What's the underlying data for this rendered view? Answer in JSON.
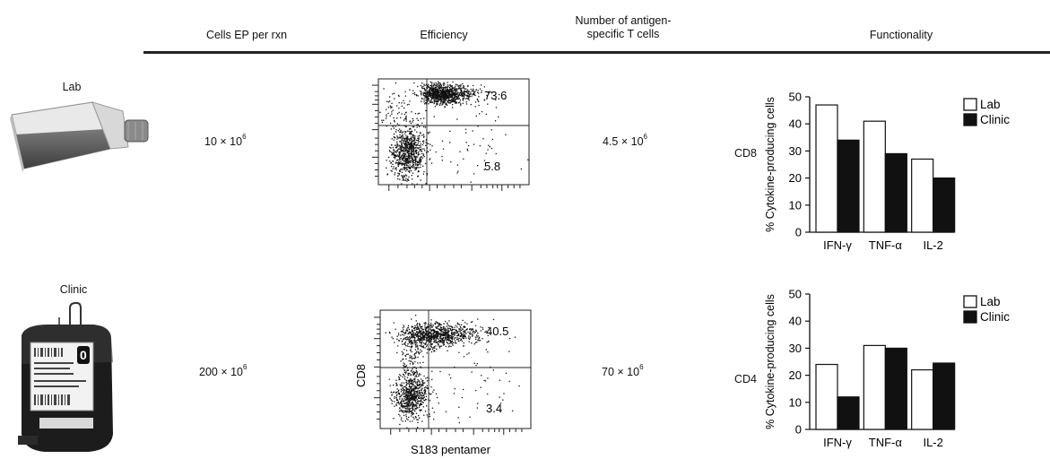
{
  "headers": {
    "cells_ep": "Cells EP per rxn",
    "efficiency": "Efficiency",
    "antigen_line1": "Number of antigen-",
    "antigen_line2": "specific T cells",
    "functionality": "Functionality"
  },
  "rows": [
    {
      "label": "Lab",
      "cells_ep_base": "10 × 10",
      "cells_ep_exp": "6",
      "flow_upper": "73.6",
      "flow_lower": "5.8",
      "antigen_base": "4.5 × 10",
      "antigen_exp": "6",
      "cell_type": "CD8"
    },
    {
      "label": "Clinic",
      "cells_ep_base": "200 × 10",
      "cells_ep_exp": "6",
      "flow_upper": "40.5",
      "flow_lower": "3.4",
      "antigen_base": "70 × 10",
      "antigen_exp": "6",
      "cell_type": "CD4"
    }
  ],
  "flow_axes": {
    "ylabel": "CD8",
    "xlabel": "S183 pentamer"
  },
  "chart_data": [
    {
      "type": "bar",
      "categories": [
        "IFN-γ",
        "TNF-α",
        "IL-2"
      ],
      "series": [
        {
          "name": "Lab",
          "values": [
            47,
            41,
            27
          ],
          "color": "#ffffff"
        },
        {
          "name": "Clinic",
          "values": [
            34,
            29,
            20
          ],
          "color": "#111111"
        }
      ],
      "ylabel": "% Cytokine-producing cells",
      "ylim": [
        0,
        50
      ],
      "yticks": [
        0,
        10,
        20,
        30,
        40,
        50
      ],
      "legend": "top-right",
      "grid": false
    },
    {
      "type": "bar",
      "categories": [
        "IFN-γ",
        "TNF-α",
        "IL-2"
      ],
      "series": [
        {
          "name": "Lab",
          "values": [
            24,
            31,
            22
          ],
          "color": "#ffffff"
        },
        {
          "name": "Clinic",
          "values": [
            12,
            30,
            24.5
          ],
          "color": "#111111"
        }
      ],
      "ylabel": "% Cytokine-producing cells",
      "ylim": [
        0,
        50
      ],
      "yticks": [
        0,
        10,
        20,
        30,
        40,
        50
      ],
      "legend": "top-right",
      "grid": false
    }
  ]
}
